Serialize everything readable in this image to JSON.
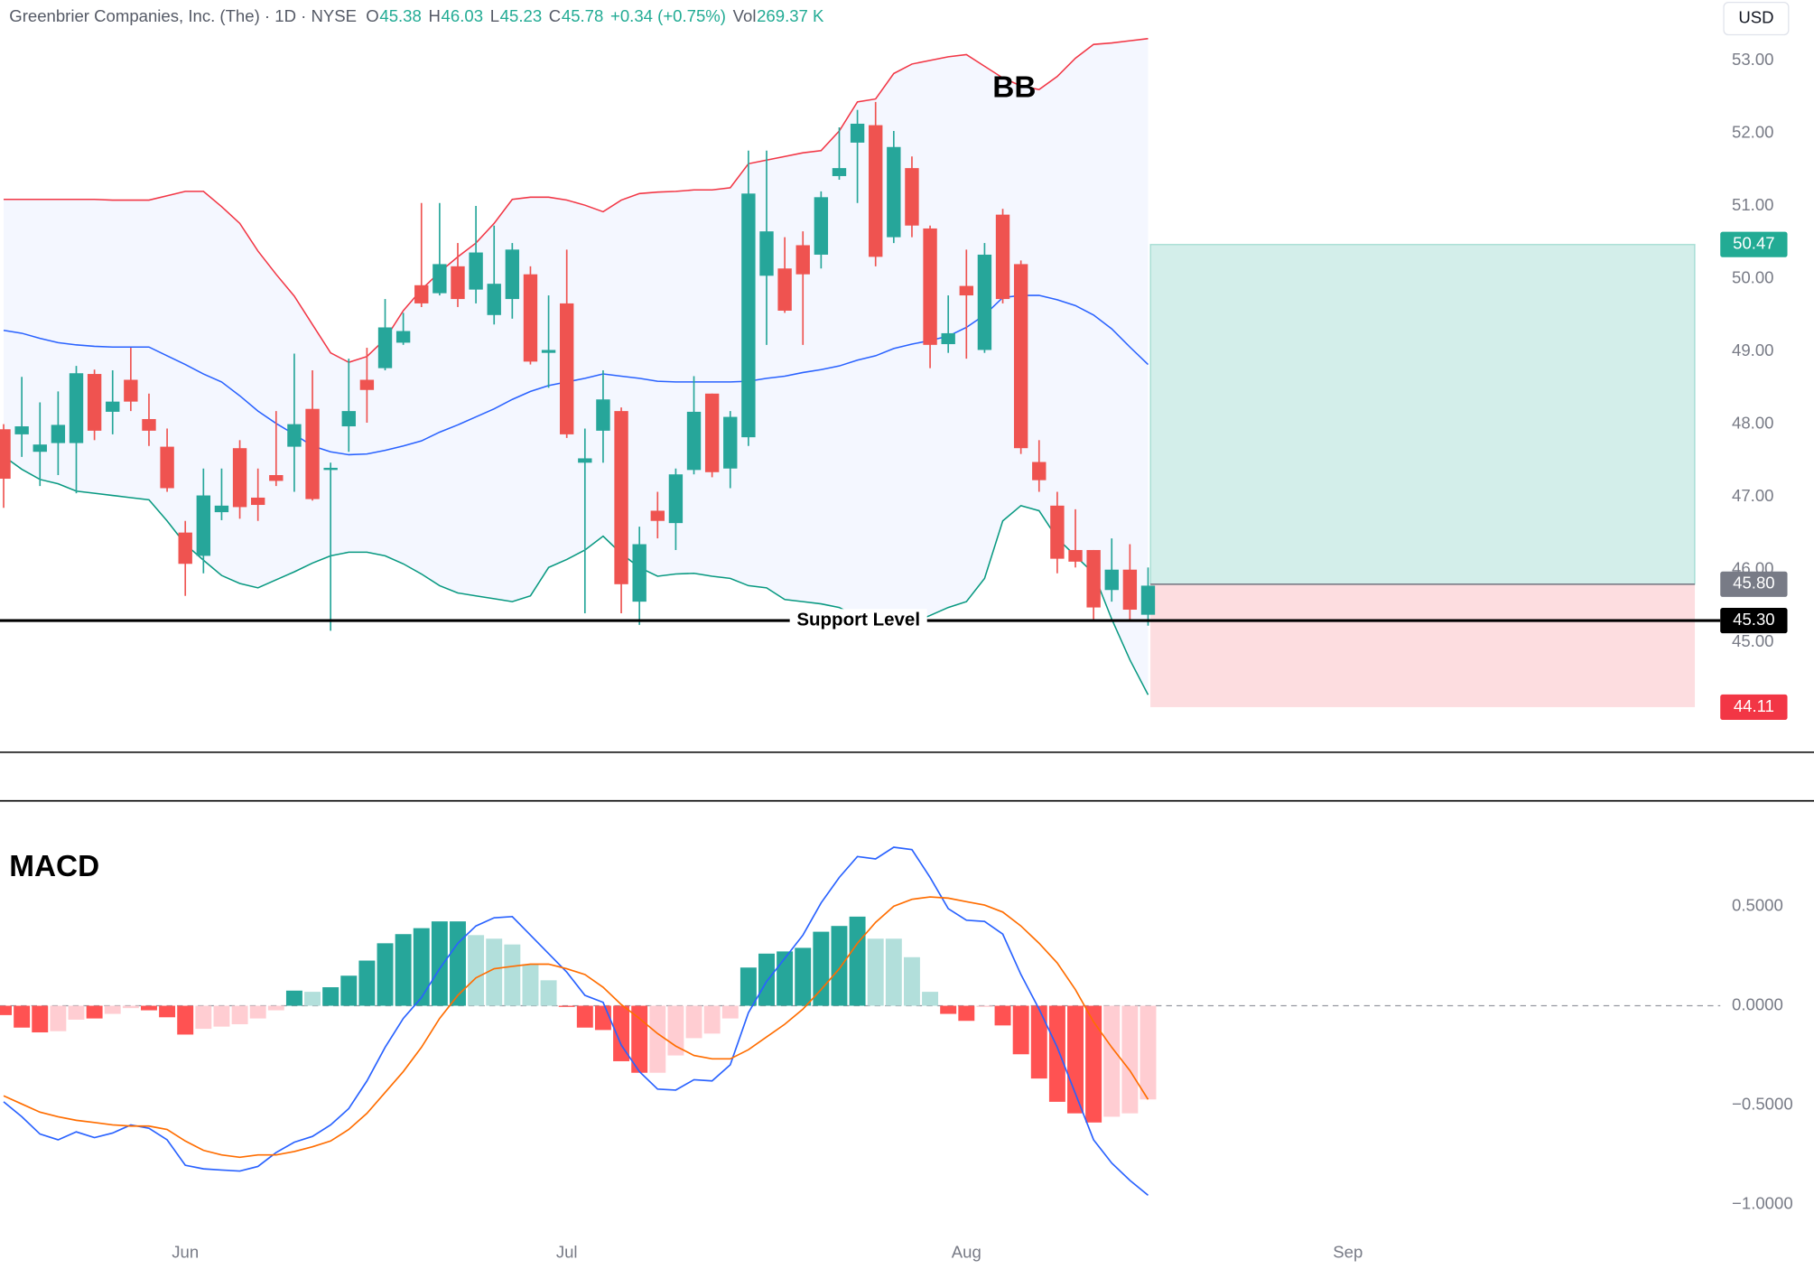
{
  "header": {
    "title": "Greenbrier Companies, Inc. (The) · 1D · NYSE",
    "open_label": "O",
    "open": 45.38,
    "high_label": "H",
    "high": 46.03,
    "low_label": "L",
    "low": 45.23,
    "close_label": "C",
    "close": 45.78,
    "change": "+0.34 (+0.75%)",
    "volume_label": "Vol",
    "volume": "269.37 K",
    "currency": "USD"
  },
  "chart_data": [
    {
      "type": "candlestick",
      "annotation": "BB",
      "xlim": [
        -0.2,
        94.5
      ],
      "ylim": [
        43.49,
        53.83
      ],
      "yticks": [
        {
          "value": 45,
          "label": "45.00"
        },
        {
          "value": 46,
          "label": "46.00"
        },
        {
          "value": 47,
          "label": "47.00"
        },
        {
          "value": 48,
          "label": "48.00"
        },
        {
          "value": 49,
          "label": "49.00"
        },
        {
          "value": 50,
          "label": "50.00"
        },
        {
          "value": 51,
          "label": "51.00"
        },
        {
          "value": 52,
          "label": "52.00"
        },
        {
          "value": 53,
          "label": "53.00"
        }
      ],
      "up_color": "#26a69a",
      "down_color": "#ef5350",
      "open": [
        47.93,
        47.86,
        47.62,
        47.74,
        47.74,
        48.69,
        48.17,
        48.61,
        48.07,
        47.69,
        46.51,
        46.19,
        46.79,
        47.67,
        46.99,
        47.3,
        47.69,
        48.21,
        47.37,
        47.97,
        48.61,
        48.77,
        49.12,
        49.91,
        49.8,
        50.17,
        49.85,
        49.5,
        49.72,
        50.06,
        48.98,
        49.66,
        47.47,
        47.91,
        48.18,
        45.56,
        46.81,
        46.64,
        47.37,
        48.42,
        47.39,
        47.82,
        50.04,
        50.14,
        50.46,
        50.33,
        51.41,
        51.87,
        52.11,
        50.57,
        51.52,
        50.69,
        49.1,
        49.9,
        49.02,
        50.88,
        50.2,
        47.48,
        46.88,
        46.27,
        46.27,
        45.72,
        46.0,
        45.38
      ],
      "high": [
        48.0,
        48.65,
        48.3,
        48.45,
        48.8,
        48.75,
        48.74,
        49.05,
        48.42,
        47.94,
        46.67,
        47.39,
        47.39,
        47.78,
        47.39,
        48.18,
        48.97,
        48.74,
        47.47,
        48.9,
        49.05,
        49.72,
        49.53,
        51.04,
        51.04,
        50.49,
        51.0,
        50.73,
        50.49,
        50.17,
        49.77,
        50.4,
        47.94,
        48.74,
        48.23,
        46.59,
        47.07,
        47.39,
        48.66,
        48.42,
        48.18,
        51.76,
        51.76,
        50.57,
        50.65,
        51.2,
        52.08,
        52.32,
        52.43,
        52.03,
        51.68,
        50.73,
        49.77,
        50.4,
        50.49,
        50.96,
        50.25,
        47.78,
        47.07,
        46.83,
        46.27,
        46.43,
        46.35,
        46.03
      ],
      "low": [
        46.85,
        47.55,
        47.15,
        47.3,
        47.05,
        47.78,
        47.86,
        48.18,
        47.7,
        47.07,
        45.64,
        45.95,
        46.68,
        46.7,
        46.67,
        47.15,
        47.07,
        46.95,
        45.16,
        47.62,
        48.02,
        48.74,
        49.09,
        49.61,
        49.77,
        49.61,
        49.66,
        49.37,
        49.45,
        48.82,
        48.5,
        47.81,
        45.4,
        47.47,
        45.4,
        45.24,
        46.43,
        46.27,
        47.31,
        47.27,
        47.12,
        47.7,
        49.09,
        49.53,
        49.09,
        50.14,
        51.36,
        51.04,
        50.17,
        50.49,
        50.57,
        48.77,
        48.98,
        48.9,
        48.98,
        49.66,
        47.59,
        47.07,
        45.95,
        46.03,
        45.32,
        45.56,
        45.32,
        45.23
      ],
      "close": [
        47.25,
        47.97,
        47.72,
        47.99,
        48.7,
        47.91,
        48.31,
        48.31,
        47.91,
        47.12,
        46.08,
        47.02,
        46.88,
        46.86,
        46.89,
        47.22,
        48.0,
        46.97,
        47.4,
        48.18,
        48.47,
        49.33,
        49.28,
        49.66,
        50.2,
        49.72,
        50.36,
        49.93,
        50.4,
        48.86,
        49.02,
        47.86,
        47.53,
        48.34,
        45.8,
        46.35,
        46.67,
        47.31,
        48.17,
        47.34,
        48.1,
        51.17,
        50.65,
        49.56,
        50.06,
        51.12,
        51.52,
        52.13,
        50.3,
        51.81,
        50.73,
        49.09,
        49.25,
        49.77,
        50.33,
        49.72,
        47.67,
        47.23,
        46.15,
        46.11,
        45.48,
        46.0,
        45.45,
        45.78
      ],
      "band_fill": "#2962ff",
      "bands": [
        {
          "color": "#f23645",
          "values": [
            51.09,
            51.09,
            51.09,
            51.09,
            51.09,
            51.09,
            51.08,
            51.08,
            51.08,
            51.14,
            51.2,
            51.2,
            50.99,
            50.76,
            50.38,
            50.06,
            49.76,
            49.37,
            48.98,
            48.85,
            48.93,
            49.17,
            49.56,
            49.85,
            50.09,
            50.3,
            50.49,
            50.76,
            51.09,
            51.12,
            51.12,
            51.08,
            51.01,
            50.92,
            51.08,
            51.17,
            51.19,
            51.2,
            51.22,
            51.22,
            51.25,
            51.58,
            51.63,
            51.68,
            51.73,
            51.76,
            52.03,
            52.43,
            52.47,
            52.82,
            52.95,
            53.0,
            53.05,
            53.08,
            52.92,
            52.76,
            52.65,
            52.6,
            52.78,
            53.03,
            53.22,
            53.24,
            53.27,
            53.3
          ]
        },
        {
          "color": "#2962ff",
          "values": [
            49.29,
            49.25,
            49.18,
            49.12,
            49.09,
            49.07,
            49.06,
            49.06,
            49.06,
            48.94,
            48.82,
            48.69,
            48.58,
            48.39,
            48.18,
            48.01,
            47.86,
            47.7,
            47.62,
            47.58,
            47.59,
            47.64,
            47.7,
            47.77,
            47.89,
            47.99,
            48.1,
            48.21,
            48.34,
            48.45,
            48.53,
            48.58,
            48.63,
            48.69,
            48.66,
            48.63,
            48.59,
            48.58,
            48.58,
            48.58,
            48.58,
            48.59,
            48.63,
            48.66,
            48.71,
            48.75,
            48.8,
            48.88,
            48.94,
            49.04,
            49.1,
            49.15,
            49.21,
            49.33,
            49.5,
            49.74,
            49.77,
            49.77,
            49.71,
            49.63,
            49.5,
            49.31,
            49.06,
            48.82
          ]
        },
        {
          "color": "#089981",
          "values": [
            47.56,
            47.38,
            47.24,
            47.18,
            47.08,
            47.05,
            47.02,
            46.99,
            46.96,
            46.67,
            46.35,
            46.13,
            45.92,
            45.81,
            45.75,
            45.86,
            45.97,
            46.09,
            46.19,
            46.24,
            46.24,
            46.19,
            46.08,
            45.94,
            45.78,
            45.68,
            45.64,
            45.6,
            45.56,
            45.64,
            46.03,
            46.14,
            46.27,
            46.46,
            46.22,
            46.03,
            45.91,
            45.94,
            45.95,
            45.91,
            45.88,
            45.78,
            45.75,
            45.59,
            45.56,
            45.53,
            45.48,
            45.35,
            45.29,
            45.24,
            45.27,
            45.37,
            45.48,
            45.56,
            45.88,
            46.67,
            46.88,
            46.81,
            46.43,
            46.19,
            45.95,
            45.32,
            44.76,
            44.28
          ]
        }
      ],
      "support": {
        "value": 45.3,
        "label": "45.30",
        "text": "Support Level",
        "color": "#000000"
      },
      "position": {
        "target": 50.47,
        "target_color": "#22ab94",
        "entry": {
          "value": 45.8,
          "label": "45.80"
        },
        "entry_color": "#787b86",
        "stop": 44.11,
        "stop_color": "#f23645"
      }
    },
    {
      "type": "macd",
      "title": "MACD",
      "xlim": [
        -0.2,
        94.5
      ],
      "ylim": [
        -1.14,
        1.03
      ],
      "yticks": [
        {
          "value": -1,
          "label": "−1.0000"
        },
        {
          "value": -0.5,
          "label": "−0.5000"
        },
        {
          "value": 0,
          "label": "0.0000"
        },
        {
          "value": 0.5,
          "label": "0.5000"
        }
      ],
      "xticks": [
        {
          "value": 10,
          "label": "Jun"
        },
        {
          "value": 31,
          "label": "Jul"
        },
        {
          "value": 53,
          "label": "Aug"
        },
        {
          "value": 74,
          "label": "Sep"
        }
      ],
      "histogram": {
        "values": [
          -0.047,
          -0.11,
          -0.134,
          -0.128,
          -0.07,
          -0.064,
          -0.041,
          -0.012,
          -0.023,
          -0.058,
          -0.145,
          -0.116,
          -0.105,
          -0.093,
          -0.064,
          -0.023,
          0.076,
          0.07,
          0.093,
          0.151,
          0.227,
          0.314,
          0.36,
          0.39,
          0.424,
          0.424,
          0.355,
          0.337,
          0.308,
          0.209,
          0.128,
          -0.006,
          -0.11,
          -0.122,
          -0.279,
          -0.337,
          -0.337,
          -0.25,
          -0.163,
          -0.14,
          -0.064,
          0.192,
          0.262,
          0.273,
          0.291,
          0.372,
          0.401,
          0.448,
          0.337,
          0.337,
          0.244,
          0.07,
          -0.041,
          -0.076,
          -0.006,
          -0.099,
          -0.244,
          -0.366,
          -0.483,
          -0.541,
          -0.587,
          -0.558,
          -0.541,
          -0.471
        ],
        "colors": [
          "#ff5252",
          "#ff5252",
          "#ff5252",
          "#ffcdd2",
          "#ffcdd2",
          "#ff5252",
          "#ffcdd2",
          "#ffcdd2",
          "#ff5252",
          "#ff5252",
          "#ff5252",
          "#ffcdd2",
          "#ffcdd2",
          "#ffcdd2",
          "#ffcdd2",
          "#ffcdd2",
          "#26a69a",
          "#b2dfdb",
          "#26a69a",
          "#26a69a",
          "#26a69a",
          "#26a69a",
          "#26a69a",
          "#26a69a",
          "#26a69a",
          "#26a69a",
          "#b2dfdb",
          "#b2dfdb",
          "#b2dfdb",
          "#b2dfdb",
          "#b2dfdb",
          "#ff5252",
          "#ff5252",
          "#ff5252",
          "#ff5252",
          "#ff5252",
          "#ffcdd2",
          "#ffcdd2",
          "#ffcdd2",
          "#ffcdd2",
          "#ffcdd2",
          "#26a69a",
          "#26a69a",
          "#26a69a",
          "#26a69a",
          "#26a69a",
          "#26a69a",
          "#26a69a",
          "#b2dfdb",
          "#b2dfdb",
          "#b2dfdb",
          "#b2dfdb",
          "#ff5252",
          "#ff5252",
          "#ffcdd2",
          "#ff5252",
          "#ff5252",
          "#ff5252",
          "#ff5252",
          "#ff5252",
          "#ff5252",
          "#ffcdd2",
          "#ffcdd2",
          "#ffcdd2"
        ]
      },
      "series": [
        {
          "color": "#2962ff",
          "values": [
            -0.483,
            -0.558,
            -0.645,
            -0.674,
            -0.634,
            -0.663,
            -0.64,
            -0.599,
            -0.616,
            -0.674,
            -0.802,
            -0.82,
            -0.826,
            -0.831,
            -0.808,
            -0.738,
            -0.686,
            -0.657,
            -0.599,
            -0.517,
            -0.378,
            -0.209,
            -0.064,
            0.041,
            0.186,
            0.314,
            0.401,
            0.442,
            0.448,
            0.355,
            0.262,
            0.169,
            0.052,
            0.017,
            -0.198,
            -0.331,
            -0.419,
            -0.424,
            -0.372,
            -0.378,
            -0.297,
            -0.035,
            0.122,
            0.238,
            0.355,
            0.517,
            0.645,
            0.75,
            0.738,
            0.797,
            0.785,
            0.645,
            0.488,
            0.43,
            0.424,
            0.36,
            0.157,
            -0.017,
            -0.209,
            -0.442,
            -0.674,
            -0.791,
            -0.878,
            -0.953
          ]
        },
        {
          "color": "#ff6d00",
          "values": [
            -0.453,
            -0.494,
            -0.535,
            -0.558,
            -0.576,
            -0.587,
            -0.599,
            -0.605,
            -0.605,
            -0.622,
            -0.68,
            -0.727,
            -0.75,
            -0.762,
            -0.75,
            -0.75,
            -0.733,
            -0.709,
            -0.68,
            -0.622,
            -0.541,
            -0.436,
            -0.331,
            -0.209,
            -0.064,
            0.052,
            0.14,
            0.186,
            0.198,
            0.209,
            0.209,
            0.186,
            0.157,
            0.093,
            0.006,
            -0.064,
            -0.14,
            -0.203,
            -0.25,
            -0.267,
            -0.267,
            -0.221,
            -0.157,
            -0.093,
            -0.017,
            0.081,
            0.186,
            0.314,
            0.419,
            0.5,
            0.535,
            0.547,
            0.541,
            0.523,
            0.506,
            0.471,
            0.401,
            0.314,
            0.215,
            0.081,
            -0.081,
            -0.209,
            -0.326,
            -0.471
          ]
        }
      ]
    }
  ]
}
